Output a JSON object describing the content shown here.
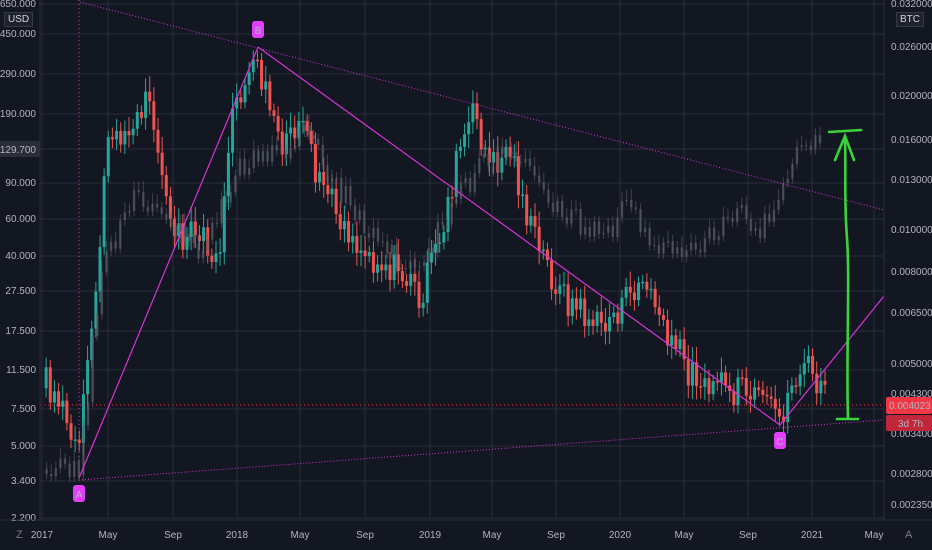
{
  "chart_data": {
    "type": "candlestick",
    "left_axis": {
      "unit": "USD",
      "scale": "log",
      "ticks": [
        "650.000",
        "450.000",
        "290.000",
        "190.000",
        "129.700",
        "90.000",
        "60.000",
        "40.000",
        "27.500",
        "17.500",
        "11.500",
        "7.500",
        "5.000",
        "3.400",
        "2.200"
      ],
      "current_value": "129.700"
    },
    "right_axis": {
      "unit": "BTC",
      "scale": "log",
      "ticks": [
        "0.032000",
        "0.026000",
        "0.020000",
        "0.016000",
        "0.013000",
        "0.010000",
        "0.008000",
        "0.006500",
        "0.005000",
        "0.004300",
        "0.003400",
        "0.002800",
        "0.002350"
      ],
      "current_price": "0.004023",
      "countdown": "3d 7h"
    },
    "x_axis": {
      "ticks": [
        "2017",
        "May",
        "Sep",
        "2018",
        "May",
        "Sep",
        "2019",
        "May",
        "Sep",
        "2020",
        "May",
        "Sep",
        "2021",
        "May"
      ]
    },
    "pattern_labels": [
      "A",
      "B",
      "C"
    ],
    "pattern_points": [
      {
        "label": "A",
        "date": "2017-03",
        "price": 0.00285
      },
      {
        "label": "B",
        "date": "2018-01",
        "price": 0.0262
      },
      {
        "label": "C",
        "date": "2020-10",
        "price": 0.0037
      }
    ],
    "colors": {
      "background": "#131722",
      "grid": "#2a2e39",
      "up_candle": "#26a69a",
      "down_candle": "#ef5350",
      "ghost_candle": "#5d606b",
      "pattern_line": "#d633d6",
      "arrow": "#3ad43a",
      "price_badge": "#f23645"
    },
    "corner_left": "Z",
    "corner_right": "A"
  }
}
